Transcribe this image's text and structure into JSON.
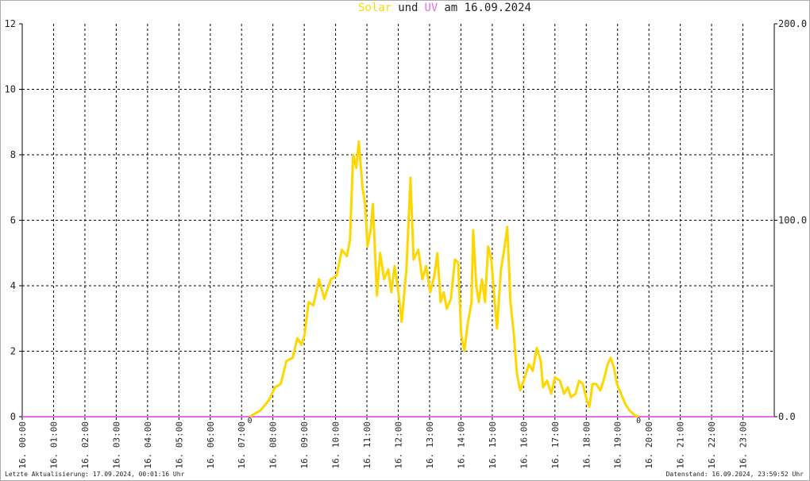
{
  "chart_data": {
    "type": "line",
    "title_connector": "und",
    "title_suffix": "am 16.09.2024",
    "footer_left": "Letzte Aktualisierung: 17.09.2024, 00:01:16 Uhr",
    "footer_right": "Datenstand: 16.09.2024, 23:59:52 Uhr",
    "xlim": [
      0,
      24
    ],
    "xticks": [
      {
        "value": 0,
        "label": "16. 00:00"
      },
      {
        "value": 1,
        "label": "16. 01:00"
      },
      {
        "value": 2,
        "label": "16. 02:00"
      },
      {
        "value": 3,
        "label": "16. 03:00"
      },
      {
        "value": 4,
        "label": "16. 04:00"
      },
      {
        "value": 5,
        "label": "16. 05:00"
      },
      {
        "value": 6,
        "label": "16. 06:00"
      },
      {
        "value": 7,
        "label": "16. 07:00"
      },
      {
        "value": 8,
        "label": "16. 08:00"
      },
      {
        "value": 9,
        "label": "16. 09:00"
      },
      {
        "value": 10,
        "label": "16. 10:00"
      },
      {
        "value": 11,
        "label": "16. 11:00"
      },
      {
        "value": 12,
        "label": "16. 12:00"
      },
      {
        "value": 13,
        "label": "16. 13:00"
      },
      {
        "value": 14,
        "label": "16. 14:00"
      },
      {
        "value": 15,
        "label": "16. 15:00"
      },
      {
        "value": 16,
        "label": "16. 16:00"
      },
      {
        "value": 17,
        "label": "16. 17:00"
      },
      {
        "value": 18,
        "label": "16. 18:00"
      },
      {
        "value": 19,
        "label": "16. 19:00"
      },
      {
        "value": 20,
        "label": "16. 20:00"
      },
      {
        "value": 21,
        "label": "16. 21:00"
      },
      {
        "value": 22,
        "label": "16. 22:00"
      },
      {
        "value": 23,
        "label": "16. 23:00"
      }
    ],
    "ylim": [
      0,
      12
    ],
    "yticks": [
      0,
      2,
      4,
      6,
      8,
      10,
      12
    ],
    "y2lim": [
      0,
      200
    ],
    "y2ticks": [
      {
        "value": 0,
        "label": "0.0"
      },
      {
        "value": 100,
        "label": "100.0"
      },
      {
        "value": 200,
        "label": "200.0"
      }
    ],
    "grid": true,
    "annotations": [
      {
        "text": "0",
        "x": 7.26,
        "color": "#e00000"
      },
      {
        "text": "0",
        "x": 19.67,
        "color": "#e00000"
      }
    ],
    "series": [
      {
        "name": "Solar",
        "color": "#ffd700",
        "x": [
          7.26,
          7.61,
          7.87,
          8.07,
          8.25,
          8.43,
          8.63,
          8.78,
          8.91,
          9.01,
          9.14,
          9.29,
          9.47,
          9.64,
          9.85,
          10.03,
          10.2,
          10.36,
          10.46,
          10.56,
          10.66,
          10.74,
          10.86,
          10.94,
          11.02,
          11.12,
          11.19,
          11.32,
          11.42,
          11.55,
          11.68,
          11.78,
          11.88,
          11.98,
          12.11,
          12.26,
          12.39,
          12.49,
          12.64,
          12.77,
          12.89,
          13.02,
          13.15,
          13.25,
          13.35,
          13.45,
          13.55,
          13.68,
          13.81,
          13.91,
          14.01,
          14.11,
          14.21,
          14.34,
          14.39,
          14.49,
          14.57,
          14.67,
          14.77,
          14.87,
          14.97,
          15.08,
          15.15,
          15.28,
          15.38,
          15.48,
          15.58,
          15.69,
          15.79,
          15.89,
          16.04,
          16.17,
          16.29,
          16.42,
          16.55,
          16.62,
          16.75,
          16.88,
          17.0,
          17.16,
          17.29,
          17.41,
          17.51,
          17.66,
          17.77,
          17.89,
          18.02,
          18.1,
          18.2,
          18.32,
          18.45,
          18.58,
          18.68,
          18.78,
          18.88,
          18.98,
          19.11,
          19.24,
          19.37,
          19.54,
          19.67
        ],
        "values": [
          0,
          0.2,
          0.5,
          0.9,
          1.0,
          1.7,
          1.8,
          2.4,
          2.2,
          2.5,
          3.5,
          3.4,
          4.2,
          3.6,
          4.2,
          4.3,
          5.1,
          4.9,
          5.4,
          8.0,
          7.6,
          8.4,
          7.0,
          6.5,
          5.2,
          5.7,
          6.5,
          3.7,
          5.0,
          4.2,
          4.5,
          3.8,
          4.6,
          4.0,
          2.9,
          4.5,
          7.3,
          4.8,
          5.1,
          4.2,
          4.6,
          3.8,
          4.3,
          5.0,
          3.5,
          3.8,
          3.3,
          3.6,
          4.8,
          4.7,
          2.5,
          2.0,
          2.8,
          3.5,
          5.7,
          4.0,
          3.5,
          4.2,
          3.5,
          5.2,
          4.8,
          3.5,
          2.7,
          4.5,
          5.1,
          5.8,
          3.5,
          2.5,
          1.3,
          0.8,
          1.2,
          1.6,
          1.4,
          2.1,
          1.7,
          0.9,
          1.1,
          0.7,
          1.2,
          1.1,
          0.7,
          0.9,
          0.6,
          0.7,
          1.1,
          1.0,
          0.5,
          0.3,
          1.0,
          1.0,
          0.8,
          1.2,
          1.6,
          1.8,
          1.5,
          1.0,
          0.7,
          0.4,
          0.2,
          0.05,
          0
        ]
      },
      {
        "name": "UV",
        "color": "#e070e0",
        "axis": "y2",
        "x": [
          0,
          24
        ],
        "values": [
          0,
          0
        ]
      }
    ]
  }
}
